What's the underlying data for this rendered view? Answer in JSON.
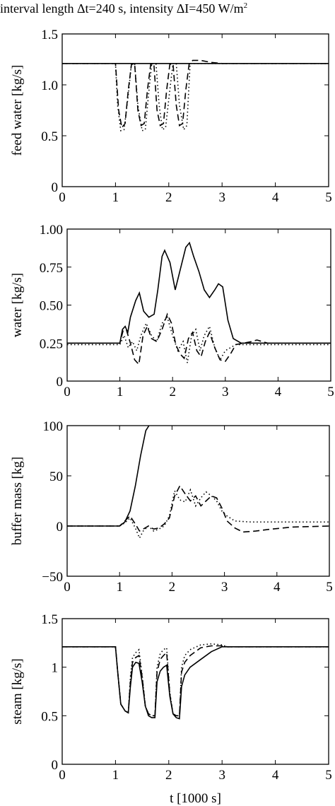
{
  "title": {
    "prefix": "interval length Δt=240 s, intensity ΔI=450 W/m",
    "superscript": "2"
  },
  "chart_data": [
    {
      "type": "line",
      "ylabel": "feed water [kg/s]",
      "xlabel": "",
      "xlim": [
        0,
        5
      ],
      "ylim": [
        0,
        1.5
      ],
      "xticks": [
        "0",
        "1",
        "2",
        "3",
        "4",
        "5"
      ],
      "yticks": [
        "0",
        "0.5",
        "1.0",
        "1.5"
      ],
      "ytick_values": [
        0,
        0.5,
        1.0,
        1.5
      ],
      "grid": false,
      "series": [
        {
          "style": "solid",
          "x": [
            0,
            5
          ],
          "y": [
            1.21,
            1.21
          ]
        },
        {
          "style": "dashed",
          "x": [
            0,
            1.0,
            1.06,
            1.12,
            1.18,
            1.24,
            1.3,
            1.36,
            1.42,
            1.48,
            1.54,
            1.6,
            1.66,
            1.72,
            1.78,
            1.84,
            1.9,
            1.96,
            2.02,
            2.08,
            2.14,
            2.2,
            2.26,
            2.32,
            2.38,
            2.45,
            2.6,
            2.8,
            3.0,
            3.2,
            5.0
          ],
          "y": [
            1.21,
            1.21,
            0.75,
            0.58,
            0.62,
            0.95,
            1.2,
            1.21,
            0.75,
            0.6,
            0.62,
            0.95,
            1.2,
            1.21,
            0.75,
            0.6,
            0.62,
            0.95,
            1.2,
            1.21,
            0.8,
            0.6,
            0.62,
            0.95,
            1.2,
            1.24,
            1.24,
            1.22,
            1.21,
            1.21,
            1.21
          ]
        },
        {
          "style": "dotted",
          "x": [
            0,
            1.0,
            1.04,
            1.1,
            1.16,
            1.24,
            1.3,
            1.36,
            1.42,
            1.5,
            1.56,
            1.62,
            1.68,
            1.76,
            1.82,
            1.88,
            1.94,
            2.02,
            2.08,
            2.14,
            2.2,
            2.28,
            2.34,
            2.4,
            5.0
          ],
          "y": [
            1.21,
            1.21,
            0.8,
            0.55,
            0.56,
            0.9,
            1.21,
            1.21,
            0.8,
            0.55,
            0.56,
            0.9,
            1.21,
            1.21,
            0.8,
            0.56,
            0.58,
            0.95,
            1.21,
            1.21,
            0.8,
            0.56,
            0.6,
            1.21,
            1.21
          ]
        }
      ]
    },
    {
      "type": "line",
      "ylabel": "water [kg/s]",
      "xlabel": "",
      "xlim": [
        0,
        5
      ],
      "ylim": [
        0,
        1.0
      ],
      "xticks": [
        "0",
        "1",
        "2",
        "3",
        "4",
        "5"
      ],
      "yticks": [
        "0",
        "0.25",
        "0.50",
        "0.75",
        "1.00"
      ],
      "ytick_values": [
        0,
        0.25,
        0.5,
        0.75,
        1.0
      ],
      "grid": false,
      "series": [
        {
          "style": "solid",
          "x": [
            0,
            1.0,
            1.05,
            1.1,
            1.15,
            1.2,
            1.3,
            1.37,
            1.45,
            1.55,
            1.65,
            1.72,
            1.8,
            1.85,
            1.95,
            2.05,
            2.15,
            2.25,
            2.32,
            2.4,
            2.5,
            2.6,
            2.7,
            2.8,
            2.87,
            2.95,
            3.05,
            3.15,
            3.3,
            5.0
          ],
          "y": [
            0.25,
            0.25,
            0.34,
            0.36,
            0.32,
            0.42,
            0.53,
            0.58,
            0.46,
            0.42,
            0.44,
            0.6,
            0.82,
            0.86,
            0.78,
            0.6,
            0.74,
            0.88,
            0.91,
            0.82,
            0.72,
            0.6,
            0.55,
            0.6,
            0.64,
            0.62,
            0.4,
            0.28,
            0.25,
            0.25
          ]
        },
        {
          "style": "dashed",
          "x": [
            0,
            1.0,
            1.06,
            1.12,
            1.2,
            1.28,
            1.36,
            1.44,
            1.52,
            1.6,
            1.7,
            1.8,
            1.9,
            1.98,
            2.06,
            2.14,
            2.22,
            2.3,
            2.38,
            2.46,
            2.54,
            2.62,
            2.7,
            2.8,
            2.9,
            3.0,
            3.1,
            3.2,
            3.5,
            3.6,
            3.8,
            5.0
          ],
          "y": [
            0.25,
            0.25,
            0.33,
            0.34,
            0.25,
            0.14,
            0.11,
            0.3,
            0.36,
            0.28,
            0.26,
            0.34,
            0.44,
            0.38,
            0.24,
            0.18,
            0.15,
            0.28,
            0.32,
            0.2,
            0.16,
            0.26,
            0.32,
            0.22,
            0.14,
            0.13,
            0.18,
            0.24,
            0.26,
            0.27,
            0.25,
            0.25
          ]
        },
        {
          "style": "dotted",
          "x": [
            0,
            1.0,
            1.08,
            1.16,
            1.24,
            1.32,
            1.4,
            1.5,
            1.6,
            1.7,
            1.8,
            1.9,
            2.0,
            2.1,
            2.2,
            2.28,
            2.36,
            2.44,
            2.52,
            2.6,
            2.7,
            2.8,
            2.9,
            3.0,
            3.2,
            5.0
          ],
          "y": [
            0.24,
            0.24,
            0.3,
            0.22,
            0.26,
            0.2,
            0.3,
            0.38,
            0.3,
            0.26,
            0.38,
            0.42,
            0.3,
            0.2,
            0.26,
            0.12,
            0.3,
            0.34,
            0.2,
            0.3,
            0.36,
            0.22,
            0.14,
            0.2,
            0.24,
            0.24
          ]
        }
      ]
    },
    {
      "type": "line",
      "ylabel": "buffer mass [kg]",
      "xlabel": "",
      "xlim": [
        0,
        5
      ],
      "ylim": [
        -50,
        100
      ],
      "xticks": [
        "0",
        "1",
        "2",
        "3",
        "4",
        "5"
      ],
      "yticks": [
        "−50",
        "0",
        "50",
        "100"
      ],
      "ytick_values": [
        -50,
        0,
        50,
        100
      ],
      "grid": false,
      "series": [
        {
          "style": "solid",
          "x": [
            0,
            1.0,
            1.1,
            1.2,
            1.3,
            1.4,
            1.5,
            1.56
          ],
          "y": [
            0,
            0,
            4,
            15,
            40,
            70,
            95,
            100
          ]
        },
        {
          "style": "dashed",
          "x": [
            0,
            1.0,
            1.1,
            1.2,
            1.3,
            1.38,
            1.45,
            1.55,
            1.65,
            1.75,
            1.85,
            1.95,
            2.05,
            2.15,
            2.25,
            2.35,
            2.45,
            2.55,
            2.65,
            2.75,
            2.85,
            2.95,
            3.05,
            3.2,
            3.35,
            3.6,
            3.9,
            4.3,
            5.0
          ],
          "y": [
            0,
            0,
            5,
            10,
            2,
            -5,
            -3,
            0,
            -3,
            -2,
            2,
            8,
            30,
            40,
            32,
            25,
            30,
            20,
            25,
            30,
            28,
            18,
            5,
            -2,
            -6,
            -5,
            -3,
            -1,
            0
          ]
        },
        {
          "style": "dotted",
          "x": [
            0,
            1.0,
            1.1,
            1.2,
            1.3,
            1.38,
            1.45,
            1.55,
            1.65,
            1.75,
            1.85,
            1.95,
            2.05,
            2.15,
            2.25,
            2.35,
            2.45,
            2.55,
            2.65,
            2.75,
            2.85,
            2.95,
            3.05,
            3.2,
            3.5,
            5.0
          ],
          "y": [
            0,
            0,
            3,
            8,
            -2,
            -12,
            -5,
            0,
            -5,
            -3,
            0,
            10,
            35,
            26,
            24,
            36,
            20,
            28,
            34,
            30,
            25,
            15,
            10,
            5,
            4,
            4
          ]
        }
      ]
    },
    {
      "type": "line",
      "ylabel": "steam [kg/s]",
      "xlabel": "t [1000 s]",
      "xlim": [
        0,
        5
      ],
      "ylim": [
        0,
        1.5
      ],
      "xticks": [
        "0",
        "1",
        "2",
        "3",
        "4",
        "5"
      ],
      "yticks": [
        "0",
        "0.5",
        "1",
        "1.5"
      ],
      "ytick_values": [
        0,
        0.5,
        1.0,
        1.5
      ],
      "grid": false,
      "series": [
        {
          "style": "solid",
          "x": [
            0,
            1.0,
            1.05,
            1.1,
            1.18,
            1.24,
            1.28,
            1.32,
            1.38,
            1.44,
            1.5,
            1.56,
            1.62,
            1.68,
            1.74,
            1.78,
            1.84,
            1.9,
            1.96,
            2.02,
            2.08,
            2.14,
            2.2,
            2.24,
            2.3,
            2.4,
            2.6,
            2.8,
            3.0,
            3.1,
            5.0
          ],
          "y": [
            1.21,
            1.21,
            0.9,
            0.62,
            0.55,
            0.53,
            0.8,
            1.0,
            1.05,
            1.04,
            0.85,
            0.6,
            0.5,
            0.48,
            0.48,
            0.85,
            0.96,
            1.0,
            1.02,
            0.7,
            0.52,
            0.48,
            0.47,
            0.8,
            0.92,
            1.0,
            1.08,
            1.16,
            1.21,
            1.21,
            1.21
          ]
        },
        {
          "style": "dashed",
          "x": [
            0,
            1.0,
            1.05,
            1.1,
            1.18,
            1.24,
            1.28,
            1.32,
            1.38,
            1.44,
            1.5,
            1.56,
            1.62,
            1.68,
            1.74,
            1.78,
            1.84,
            1.9,
            1.96,
            2.02,
            2.08,
            2.14,
            2.2,
            2.24,
            2.3,
            2.4,
            2.6,
            2.8,
            3.0,
            3.1,
            5.0
          ],
          "y": [
            1.21,
            1.21,
            0.9,
            0.62,
            0.55,
            0.53,
            0.85,
            1.05,
            1.1,
            1.12,
            0.9,
            0.6,
            0.52,
            0.5,
            0.5,
            0.95,
            1.08,
            1.12,
            1.15,
            0.72,
            0.52,
            0.5,
            0.5,
            0.95,
            1.05,
            1.12,
            1.2,
            1.22,
            1.22,
            1.21,
            1.21
          ]
        },
        {
          "style": "dotted",
          "x": [
            0,
            1.0,
            1.05,
            1.1,
            1.18,
            1.24,
            1.28,
            1.32,
            1.38,
            1.44,
            1.5,
            1.56,
            1.62,
            1.68,
            1.74,
            1.78,
            1.84,
            1.9,
            1.96,
            2.02,
            2.08,
            2.14,
            2.2,
            2.24,
            2.3,
            2.4,
            2.6,
            2.8,
            3.0,
            3.1,
            5.0
          ],
          "y": [
            1.21,
            1.21,
            0.9,
            0.62,
            0.55,
            0.53,
            0.9,
            1.1,
            1.15,
            1.18,
            0.92,
            0.6,
            0.52,
            0.5,
            0.5,
            1.0,
            1.14,
            1.18,
            1.2,
            0.74,
            0.52,
            0.5,
            0.5,
            1.0,
            1.12,
            1.18,
            1.23,
            1.24,
            1.23,
            1.21,
            1.21
          ]
        }
      ]
    }
  ]
}
